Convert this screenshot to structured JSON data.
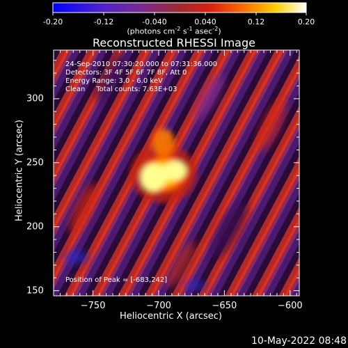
{
  "timestamp": "10-May-2022 08:48",
  "colorbar": {
    "ticks": [
      "-0.20",
      "-0.12",
      "-0.040",
      "0.040",
      "0.12",
      "0.20"
    ],
    "units_label": "(photons cm",
    "exp1": "-2",
    "mid": " s",
    "exp2": "-1",
    "mid2": " asec",
    "exp3": "-2",
    "end": ")"
  },
  "chart_data": {
    "type": "heatmap",
    "title": "Reconstructed RHESSI Image",
    "xlabel": "Heliocentric X (arcsec)",
    "ylabel": "Heliocentric Y (arcsec)",
    "xlim": [
      -780,
      -593
    ],
    "ylim": [
      146,
      338
    ],
    "x_ticks": [
      -750,
      -700,
      -650,
      -600
    ],
    "x_tick_labels": [
      "−750",
      "−700",
      "−650",
      "−600"
    ],
    "y_ticks": [
      150,
      200,
      250,
      300
    ],
    "y_tick_labels": [
      "150",
      "200",
      "250",
      "300"
    ],
    "color_range": [
      -0.2,
      0.2
    ],
    "colormap": [
      "#0000ff",
      "#5a20c8",
      "#8a2a86",
      "#b03028",
      "#e02010",
      "#ff6000",
      "#ffc000",
      "#ffff80",
      "#ffffff"
    ],
    "peak": [
      -683,
      242
    ],
    "annotations": [
      "24-Sep-2010 07:30:20.000 to 07:31:36.000",
      "Detectors: 3F 4F 5F 6F 7F 8F, Att 0",
      "Energy Range: 3.0 - 6.0 keV",
      "Clean     Total counts: 7.63E+03",
      "Position of Peak = [-683,242]"
    ]
  }
}
